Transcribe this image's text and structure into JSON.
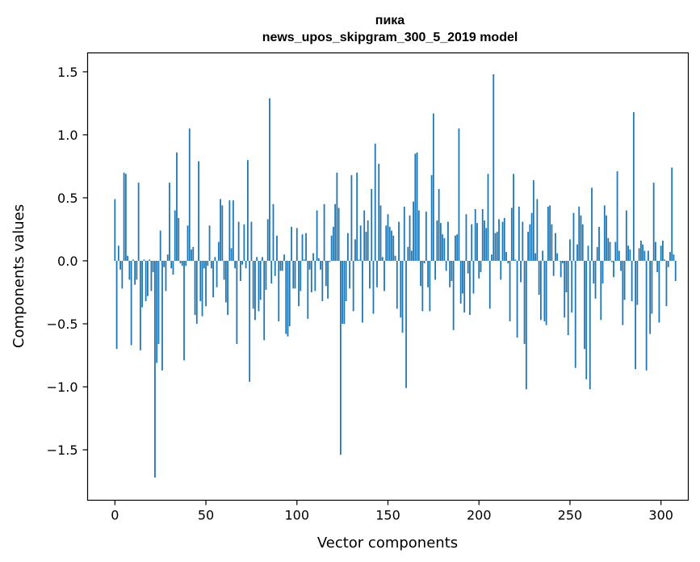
{
  "chart_data": {
    "type": "bar",
    "title": "пика",
    "subtitle": "news_upos_skipgram_300_5_2019 model",
    "xlabel": "Vector components",
    "ylabel": "Components values",
    "xlim": [
      -15,
      315
    ],
    "ylim": [
      -1.9,
      1.65
    ],
    "xticks": [
      0,
      50,
      100,
      150,
      200,
      250,
      300
    ],
    "yticks": [
      1.5,
      1.0,
      0.5,
      0.0,
      -0.5,
      -1.0,
      -1.5
    ],
    "ytick_labels": [
      "1.5",
      "1.0",
      "0.5",
      "0.0",
      "−0.5",
      "−1.0",
      "−1.5"
    ],
    "bar_color": "#1f77b4",
    "values": [
      0.49,
      -0.7,
      0.12,
      -0.07,
      -0.22,
      0.7,
      0.69,
      0.04,
      -0.15,
      -0.67,
      0.01,
      -0.19,
      -0.15,
      0.62,
      -0.71,
      -0.37,
      0.01,
      -0.32,
      -0.28,
      0.01,
      -0.24,
      -0.09,
      -1.72,
      -0.81,
      -0.66,
      0.24,
      -0.87,
      -0.05,
      -0.24,
      0.05,
      0.62,
      -0.06,
      -0.11,
      0.4,
      0.86,
      0.34,
      -0.02,
      -0.04,
      -0.79,
      -0.04,
      0.28,
      1.05,
      0.09,
      0.11,
      -0.43,
      -0.5,
      0.79,
      -0.32,
      -0.44,
      -0.06,
      -0.36,
      -0.04,
      0.28,
      -0.06,
      -0.29,
      0.03,
      -0.21,
      0.15,
      0.49,
      0.44,
      -0.15,
      -0.33,
      -0.43,
      0.48,
      0.1,
      0.48,
      -0.06,
      -0.66,
      0.31,
      -0.16,
      -0.03,
      0.29,
      -0.06,
      0.8,
      -0.96,
      0.31,
      -0.38,
      -0.47,
      0.03,
      -0.4,
      -0.31,
      0.03,
      -0.63,
      -0.23,
      0.33,
      1.29,
      -0.18,
      0.45,
      -0.12,
      0.2,
      -0.48,
      -0.08,
      -0.08,
      0.05,
      -0.58,
      -0.6,
      -0.52,
      0.27,
      -0.22,
      -0.22,
      0.26,
      -0.36,
      -0.24,
      0.21,
      0.01,
      0.22,
      -0.46,
      -0.07,
      -0.25,
      0.06,
      -0.24,
      0.4,
      0.02,
      -0.07,
      -0.32,
      0.45,
      -0.2,
      -0.3,
      -0.01,
      0.2,
      0.27,
      0.45,
      0.7,
      0.42,
      -1.54,
      -0.5,
      -0.5,
      -0.32,
      0.22,
      -0.22,
      0.68,
      -0.4,
      0.17,
      0.7,
      0.01,
      0.28,
      -0.49,
      0.4,
      0.23,
      0.32,
      -0.22,
      0.57,
      -0.42,
      0.93,
      -0.21,
      0.77,
      0.44,
      0.03,
      -0.24,
      0.28,
      0.37,
      0.27,
      0.24,
      0.2,
      0.04,
      -0.38,
      0.31,
      -0.45,
      -0.57,
      0.43,
      -1.01,
      0.11,
      0.36,
      0.08,
      0.47,
      0.85,
      0.86,
      0.4,
      -0.2,
      -0.4,
      -0.02,
      0.39,
      -0.21,
      -0.4,
      0.68,
      1.17,
      -0.15,
      0.32,
      0.57,
      0.3,
      0.21,
      0.18,
      -0.08,
      0.31,
      -0.21,
      -0.16,
      -0.55,
      0.2,
      0.21,
      1.05,
      -0.34,
      -0.26,
      -0.41,
      0.37,
      -0.1,
      -0.43,
      0.29,
      -0.26,
      0.41,
      0.3,
      -0.14,
      -0.09,
      0.41,
      0.32,
      0.26,
      0.69,
      -0.38,
      0.05,
      1.48,
      0.22,
      0.23,
      0.33,
      -0.15,
      0.31,
      0.34,
      0.07,
      -0.02,
      -0.48,
      0.42,
      0.69,
      0.01,
      -0.61,
      0.43,
      -0.17,
      0.31,
      -0.66,
      -1.02,
      0.23,
      0.29,
      0.38,
      0.64,
      0.06,
      0.49,
      -0.27,
      -0.47,
      0.08,
      -0.48,
      -0.51,
      0.43,
      0.44,
      0.29,
      -0.12,
      0.22,
      0.06,
      0.0,
      -0.13,
      -0.02,
      -0.45,
      -0.25,
      -0.59,
      0.17,
      -0.41,
      0.38,
      -0.85,
      0.13,
      0.43,
      0.36,
      0.29,
      -0.7,
      -0.94,
      0.12,
      -1.02,
      0.58,
      -0.18,
      -0.3,
      0.11,
      0.27,
      -0.47,
      -0.18,
      0.44,
      0.36,
      0.18,
      0.15,
      -0.01,
      -0.13,
      0.15,
      0.71,
      0.08,
      -0.08,
      -0.51,
      -0.31,
      0.4,
      0.12,
      0.09,
      -0.32,
      1.18,
      -0.86,
      -0.35,
      0.1,
      0.16,
      0.13,
      0.08,
      -0.87,
      0.08,
      -0.58,
      -0.42,
      0.62,
      0.15,
      -0.09,
      -0.49,
      0.12,
      0.16,
      0.01,
      -0.36,
      -0.05,
      0.07,
      0.74,
      0.05,
      -0.16
    ]
  }
}
